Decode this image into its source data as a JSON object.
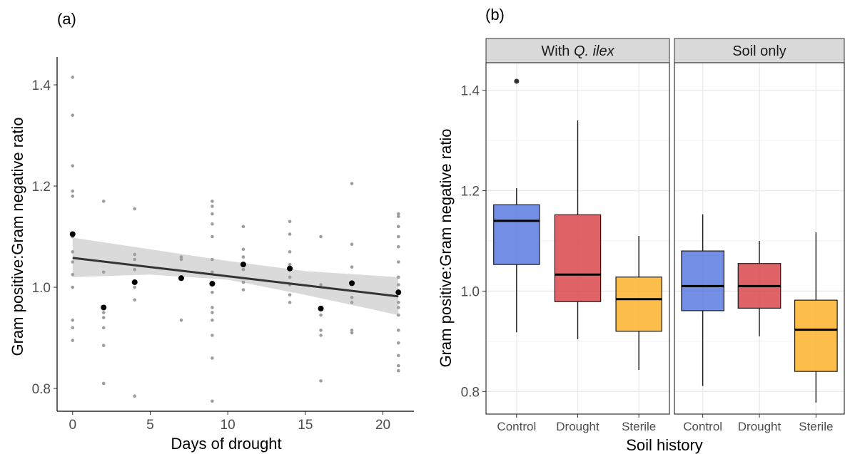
{
  "chart_data": [
    {
      "panel_label": "(a)",
      "type": "scatter",
      "xlabel": "Days of drought",
      "ylabel": "Gram positive:Gram negative ratio",
      "xlim": [
        -1,
        22
      ],
      "ylim": [
        0.755,
        1.455
      ],
      "xticks": [
        0,
        5,
        10,
        15,
        20
      ],
      "yticks": [
        0.8,
        1.0,
        1.2,
        1.4
      ],
      "grid": false,
      "raw_points": [
        [
          0,
          1.415
        ],
        [
          0,
          1.34
        ],
        [
          0,
          1.24
        ],
        [
          0,
          1.19
        ],
        [
          0,
          1.18
        ],
        [
          0,
          1.1
        ],
        [
          0,
          1.07
        ],
        [
          0,
          1.05
        ],
        [
          0,
          1.025
        ],
        [
          0,
          1.0
        ],
        [
          0,
          0.935
        ],
        [
          0,
          0.92
        ],
        [
          0,
          0.895
        ],
        [
          2,
          1.17
        ],
        [
          2,
          1.03
        ],
        [
          2,
          0.95
        ],
        [
          2,
          0.94
        ],
        [
          2,
          0.92
        ],
        [
          2,
          0.885
        ],
        [
          2,
          0.81
        ],
        [
          4,
          1.155
        ],
        [
          4,
          1.065
        ],
        [
          4,
          1.055
        ],
        [
          4,
          1.035
        ],
        [
          4,
          1.0
        ],
        [
          4,
          0.975
        ],
        [
          4,
          0.785
        ],
        [
          7,
          1.06
        ],
        [
          7,
          1.055
        ],
        [
          7,
          1.02
        ],
        [
          7,
          0.935
        ],
        [
          9,
          1.17
        ],
        [
          9,
          1.16
        ],
        [
          9,
          1.145
        ],
        [
          9,
          1.125
        ],
        [
          9,
          1.1
        ],
        [
          9,
          1.055
        ],
        [
          9,
          1.03
        ],
        [
          9,
          1.01
        ],
        [
          9,
          0.99
        ],
        [
          9,
          0.96
        ],
        [
          9,
          0.95
        ],
        [
          9,
          0.935
        ],
        [
          9,
          0.905
        ],
        [
          9,
          0.86
        ],
        [
          9,
          0.775
        ],
        [
          11,
          1.12
        ],
        [
          11,
          1.075
        ],
        [
          11,
          1.06
        ],
        [
          11,
          1.035
        ],
        [
          11,
          1.01
        ],
        [
          11,
          0.995
        ],
        [
          14,
          1.13
        ],
        [
          14,
          1.105
        ],
        [
          14,
          1.07
        ],
        [
          14,
          1.045
        ],
        [
          14,
          1.02
        ],
        [
          14,
          1.005
        ],
        [
          14,
          0.985
        ],
        [
          14,
          0.97
        ],
        [
          16,
          1.1
        ],
        [
          16,
          1.005
        ],
        [
          16,
          0.96
        ],
        [
          16,
          0.945
        ],
        [
          16,
          0.915
        ],
        [
          16,
          0.905
        ],
        [
          16,
          0.815
        ],
        [
          18,
          1.205
        ],
        [
          18,
          1.085
        ],
        [
          18,
          1.04
        ],
        [
          18,
          1.01
        ],
        [
          18,
          0.98
        ],
        [
          18,
          0.97
        ],
        [
          18,
          0.915
        ],
        [
          18,
          0.91
        ],
        [
          21,
          1.145
        ],
        [
          21,
          1.14
        ],
        [
          21,
          1.12
        ],
        [
          21,
          1.1
        ],
        [
          21,
          1.08
        ],
        [
          21,
          1.05
        ],
        [
          21,
          1.02
        ],
        [
          21,
          1.005
        ],
        [
          21,
          0.99
        ],
        [
          21,
          0.97
        ],
        [
          21,
          0.96
        ],
        [
          21,
          0.945
        ],
        [
          21,
          0.915
        ],
        [
          21,
          0.89
        ],
        [
          21,
          0.865
        ],
        [
          21,
          0.845
        ],
        [
          21,
          0.835
        ]
      ],
      "mean_points": [
        [
          0,
          1.105
        ],
        [
          2,
          0.96
        ],
        [
          4,
          1.01
        ],
        [
          7,
          1.018
        ],
        [
          9,
          1.007
        ],
        [
          11,
          1.045
        ],
        [
          14,
          1.037
        ],
        [
          16,
          0.958
        ],
        [
          18,
          1.008
        ],
        [
          21,
          0.99
        ]
      ],
      "fit_line": {
        "x": [
          0,
          21
        ],
        "y": [
          1.058,
          0.982
        ]
      },
      "ci_band": {
        "x": [
          0,
          5,
          10,
          15,
          21
        ],
        "lower": [
          1.02,
          1.025,
          1.015,
          0.985,
          0.945
        ],
        "upper": [
          1.098,
          1.075,
          1.052,
          1.032,
          1.02
        ]
      },
      "colors": {
        "raw": "#9e9e9e",
        "mean": "#000000",
        "fit": "#333333",
        "band": "#d3d3d3"
      }
    },
    {
      "panel_label": "(b)",
      "type": "box",
      "xlabel": "Soil history",
      "ylabel": "Gram positive:Gram negative ratio",
      "ylim": [
        0.755,
        1.455
      ],
      "yticks": [
        0.8,
        1.0,
        1.2,
        1.4
      ],
      "grid": true,
      "categories": [
        "Control",
        "Drought",
        "Sterile"
      ],
      "facets": [
        {
          "title_plain": "With ",
          "title_italic": "Q. ilex",
          "boxes": [
            {
              "category": "Control",
              "min": 0.918,
              "q1": 1.053,
              "median": 1.14,
              "q3": 1.172,
              "max": 1.205,
              "outliers": [
                1.418
              ]
            },
            {
              "category": "Drought",
              "min": 0.904,
              "q1": 0.979,
              "median": 1.033,
              "q3": 1.152,
              "max": 1.34,
              "outliers": []
            },
            {
              "category": "Sterile",
              "min": 0.843,
              "q1": 0.92,
              "median": 0.984,
              "q3": 1.028,
              "max": 1.11,
              "outliers": []
            }
          ]
        },
        {
          "title_plain": "Soil only",
          "title_italic": "",
          "boxes": [
            {
              "category": "Control",
              "min": 0.811,
              "q1": 0.961,
              "median": 1.01,
              "q3": 1.08,
              "max": 1.153,
              "outliers": []
            },
            {
              "category": "Drought",
              "min": 0.91,
              "q1": 0.966,
              "median": 1.01,
              "q3": 1.055,
              "max": 1.1,
              "outliers": []
            },
            {
              "category": "Sterile",
              "min": 0.778,
              "q1": 0.84,
              "median": 0.923,
              "q3": 0.982,
              "max": 1.117,
              "outliers": []
            }
          ]
        }
      ],
      "colors": {
        "Control": "#5b7be0",
        "Drought": "#d9474c",
        "Sterile": "#fdb32b"
      }
    }
  ]
}
